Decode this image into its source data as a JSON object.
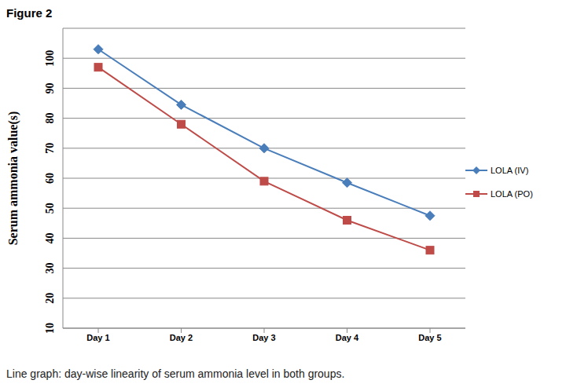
{
  "chart_data": {
    "type": "line",
    "title": "Figure 2",
    "caption": "Line graph: day-wise linearity of serum ammonia level in both groups.",
    "y_label": "Serum ammonia value(s)",
    "categories": [
      "Day 1",
      "Day 2",
      "Day 3",
      "Day 4",
      "Day 5"
    ],
    "series": [
      {
        "name": "LOLA (IV)",
        "color": "#4a7ebb",
        "marker": "diamond",
        "values": [
          103,
          84.5,
          70,
          58.5,
          47.5
        ]
      },
      {
        "name": "LOLA (PO)",
        "color": "#be4b48",
        "marker": "square",
        "values": [
          97,
          78,
          59,
          46,
          36
        ]
      }
    ],
    "ylim": [
      10,
      110
    ],
    "yticks": [
      10,
      20,
      30,
      40,
      50,
      60,
      70,
      80,
      90,
      100
    ],
    "grid": true,
    "legend": "right"
  }
}
